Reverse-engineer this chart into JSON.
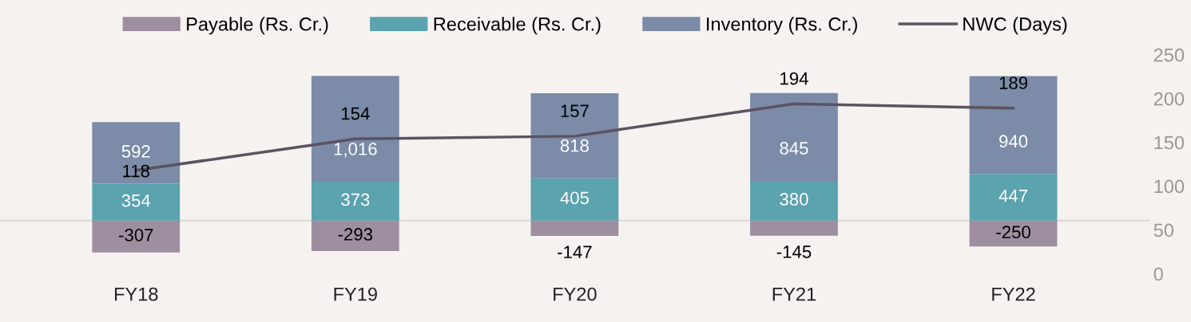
{
  "chart_data": {
    "type": "bar",
    "stacked": true,
    "categories": [
      "FY18",
      "FY19",
      "FY20",
      "FY21",
      "FY22"
    ],
    "series": [
      {
        "name": "Payable (Rs. Cr.)",
        "color": "#9e8fa0",
        "values": [
          -307,
          -293,
          -147,
          -145,
          -250
        ]
      },
      {
        "name": "Receivable (Rs. Cr.)",
        "color": "#5ba3ae",
        "values": [
          354,
          373,
          405,
          380,
          447
        ]
      },
      {
        "name": "Inventory (Rs. Cr.)",
        "color": "#7b8ba8",
        "values": [
          592,
          1016,
          818,
          845,
          940
        ],
        "value_labels": [
          "592",
          "1,016",
          "818",
          "845",
          "940"
        ]
      },
      {
        "name": "NWC (Days)",
        "type": "line",
        "axis": "y2",
        "color": "#5d5260",
        "values": [
          118,
          154,
          157,
          194,
          189
        ]
      }
    ],
    "y2lim": [
      0,
      250
    ],
    "y2ticks": [
      0,
      50,
      100,
      150,
      200,
      250
    ],
    "data_labels": true,
    "legend": "top",
    "grid": false,
    "marker": "none",
    "line_style": "solid"
  }
}
